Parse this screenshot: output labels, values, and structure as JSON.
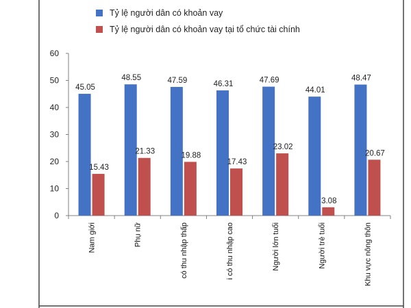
{
  "chart_data": {
    "type": "bar",
    "categories": [
      "Nam giới",
      "Phụ nữ",
      "có thu nhập thấp",
      "i có thu nhập cao",
      "Người lớn tuổi",
      "Người trẻ tuổi",
      "Khu vực nông thôn"
    ],
    "series": [
      {
        "name": "Tỷ lệ người dân có khoản vay",
        "color": "#4472C4",
        "values": [
          45.05,
          48.55,
          47.59,
          46.31,
          47.69,
          44.01,
          48.47
        ],
        "labels": [
          "45.05",
          "48.55",
          "47.59",
          "46.31",
          "47.69",
          "44.01",
          "48.47"
        ]
      },
      {
        "name": "Tỷ lệ người dân có khoản vay tại tổ chức tài chính",
        "color": "#C0504D",
        "values": [
          15.43,
          21.33,
          19.88,
          17.43,
          23.02,
          3.08,
          20.67
        ],
        "labels": [
          "15.43",
          "21.33",
          "19.88",
          "17.43",
          "23.02",
          "3.08",
          "20.67"
        ]
      }
    ],
    "yticks": [
      "0",
      "10",
      "20",
      "30",
      "40",
      "50",
      "60"
    ],
    "ylim": [
      0,
      60
    ],
    "grid": false,
    "legend_position": "top"
  }
}
